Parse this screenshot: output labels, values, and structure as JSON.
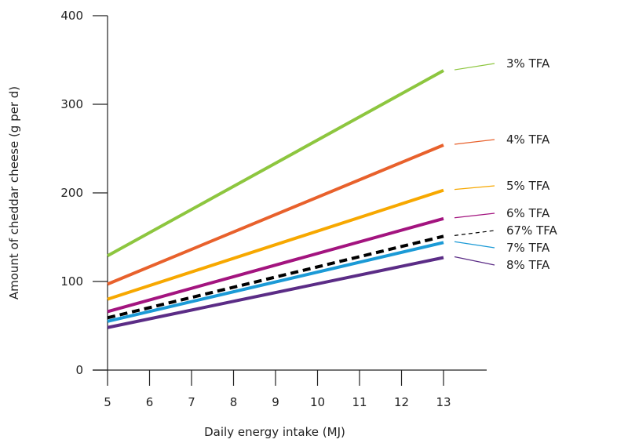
{
  "chart_data": {
    "type": "line",
    "title": "",
    "xlabel": "Daily energy intake (MJ)",
    "ylabel": "Amount of cheddar cheese (g per d)",
    "xlim": [
      5,
      13
    ],
    "ylim": [
      0,
      400
    ],
    "x_ticks": [
      "5",
      "6",
      "7",
      "8",
      "9",
      "10",
      "11",
      "12",
      "13"
    ],
    "y_ticks": [
      "0",
      "100",
      "200",
      "300",
      "400"
    ],
    "grid": false,
    "legend_placement": "right, labels at line ends",
    "x": [
      5,
      13
    ],
    "series": [
      {
        "name": "3% TFA",
        "color": "#8dc63f",
        "dashed": false,
        "values": [
          129,
          338
        ]
      },
      {
        "name": "4% TFA",
        "color": "#e8612c",
        "dashed": false,
        "values": [
          97,
          254
        ]
      },
      {
        "name": "5% TFA",
        "color": "#f7a800",
        "dashed": false,
        "values": [
          80,
          203
        ]
      },
      {
        "name": "6% TFA",
        "color": "#a3147f",
        "dashed": false,
        "values": [
          66,
          171
        ]
      },
      {
        "name": "67% TFA",
        "color": "#000000",
        "dashed": true,
        "values": [
          59,
          151
        ]
      },
      {
        "name": "7% TFA",
        "color": "#1b9ad6",
        "dashed": false,
        "values": [
          55,
          144
        ]
      },
      {
        "name": "8% TFA",
        "color": "#5b2c86",
        "dashed": false,
        "values": [
          48,
          127
        ]
      }
    ]
  }
}
